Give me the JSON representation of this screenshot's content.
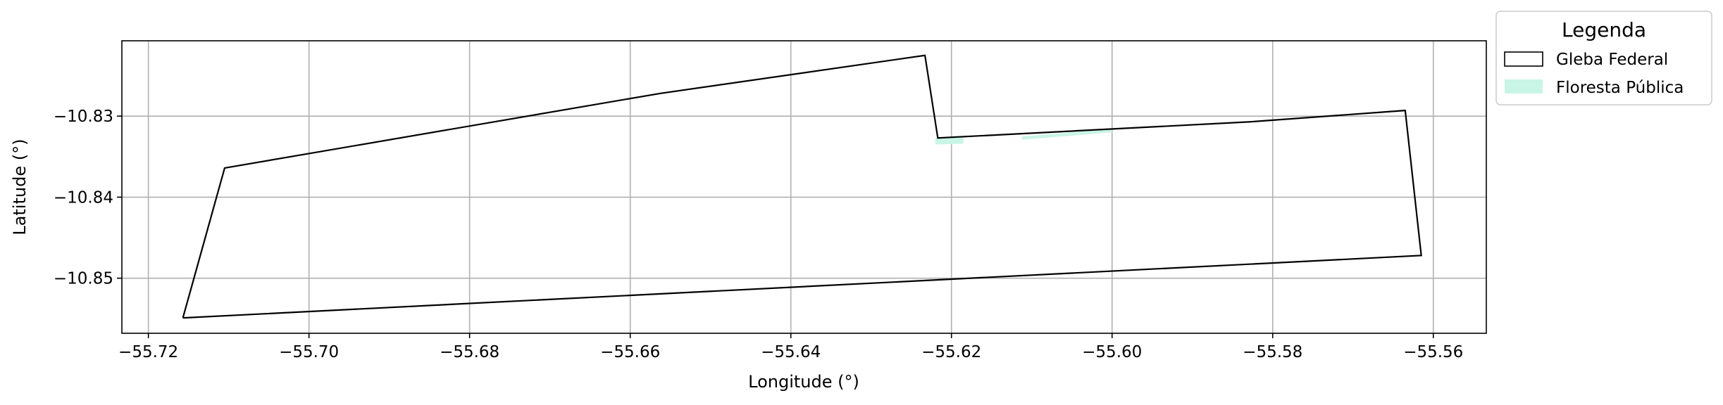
{
  "chart_data": {
    "type": "map",
    "xlabel": "Longitude (°)",
    "ylabel": "Latitude (°)",
    "xlim": [
      -55.7233,
      -55.5534
    ],
    "ylim": [
      -10.8568,
      -10.8207
    ],
    "grid": true,
    "x_ticks": [
      -55.72,
      -55.7,
      -55.68,
      -55.66,
      -55.64,
      -55.62,
      -55.6,
      -55.58,
      -55.56
    ],
    "x_tick_labels": [
      "−55.72",
      "−55.70",
      "−55.68",
      "−55.66",
      "−55.64",
      "−55.62",
      "−55.60",
      "−55.58",
      "−55.56"
    ],
    "y_ticks": [
      -10.83,
      -10.84,
      -10.85
    ],
    "y_tick_labels": [
      "−10.83",
      "−10.84",
      "−10.85"
    ],
    "legend": {
      "title": "Legenda",
      "placement": "outside-top-right",
      "entries": [
        {
          "label": "Gleba Federal",
          "style": "outline",
          "color": "#000000"
        },
        {
          "label": "Floresta Pública",
          "style": "fill",
          "color": "#c8f5e6"
        }
      ]
    },
    "layers": [
      {
        "name": "Gleba Federal",
        "kind": "polygon-outline",
        "stroke": "#000000",
        "coordinates": [
          [
            -55.7157,
            -10.8549
          ],
          [
            -55.7105,
            -10.8364
          ],
          [
            -55.6563,
            -10.8272
          ],
          [
            -55.6233,
            -10.8225
          ],
          [
            -55.6217,
            -10.8327
          ],
          [
            -55.5828,
            -10.8307
          ],
          [
            -55.5635,
            -10.8293
          ],
          [
            -55.5615,
            -10.8472
          ],
          [
            -55.7157,
            -10.8549
          ]
        ]
      },
      {
        "name": "Floresta Pública",
        "kind": "polygon-fill",
        "fill": "#c8f5e6",
        "polygons": [
          [
            [
              -55.622,
              -10.8327
            ],
            [
              -55.6185,
              -10.8325
            ],
            [
              -55.6185,
              -10.8334
            ],
            [
              -55.622,
              -10.8335
            ]
          ],
          [
            [
              -55.6112,
              -10.8325
            ],
            [
              -55.6,
              -10.8316
            ],
            [
              -55.6,
              -10.832
            ],
            [
              -55.6112,
              -10.8329
            ]
          ]
        ]
      }
    ]
  }
}
